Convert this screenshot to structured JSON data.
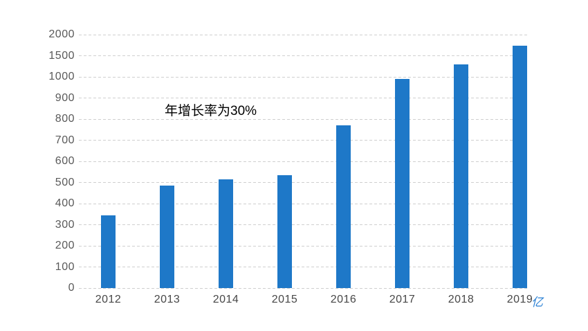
{
  "chart_data": {
    "type": "bar",
    "title": "",
    "xlabel": "",
    "ylabel": "",
    "categories": [
      "2012",
      "2013",
      "2014",
      "2015",
      "2016",
      "2017",
      "2018",
      "2019"
    ],
    "values": [
      345,
      485,
      515,
      535,
      770,
      990,
      1300,
      1730
    ],
    "annotation": "年增长率为30%",
    "unit_label": "亿",
    "y_ticks": [
      0,
      100,
      200,
      300,
      400,
      500,
      600,
      700,
      800,
      900,
      1000,
      1500,
      2000
    ],
    "ylim": [
      0,
      2000
    ],
    "y_axis_note": "all ticks evenly spaced (segments 1000-1500-2000 compressed)",
    "grid": "horizontal dashed",
    "legend_position": "none",
    "colors": {
      "bar": "#1E78C8",
      "unit_label": "#2A80D4",
      "y_tick_label": "#595959",
      "x_tick_label": "#474747",
      "gridline": "#cfcfcf",
      "annotation": "#000000",
      "background": "#ffffff"
    }
  }
}
